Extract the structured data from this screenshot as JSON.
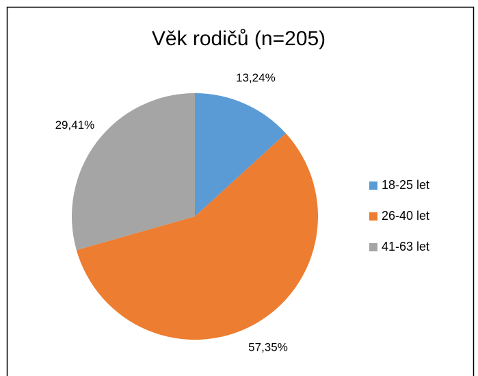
{
  "chart_data": {
    "type": "pie",
    "title": "Věk rodičů (n=205)",
    "categories": [
      "18-25 let",
      "26-40 let",
      "41-63 let"
    ],
    "values": [
      13.24,
      57.35,
      29.41
    ],
    "value_labels": [
      "13,24%",
      "57,35%",
      "29,41%"
    ],
    "colors": [
      "#5b9bd5",
      "#ed7d31",
      "#a5a5a5"
    ],
    "legend": "right"
  }
}
